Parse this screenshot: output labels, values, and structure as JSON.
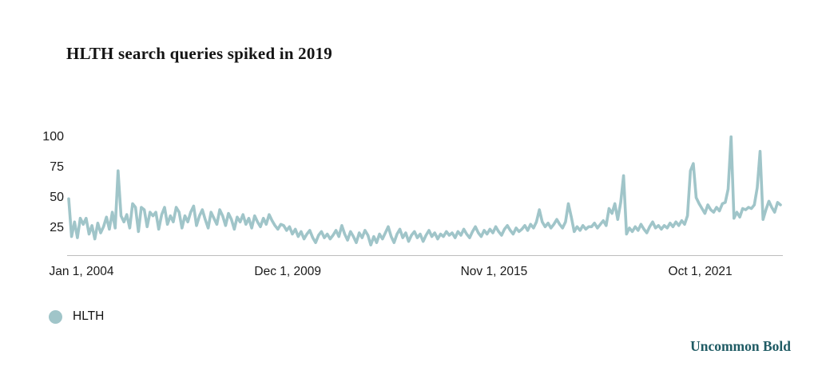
{
  "header": {
    "title": "HLTH search queries spiked in 2019"
  },
  "chart_data": {
    "type": "line",
    "title": "HLTH search queries spiked in 2019",
    "xlabel": "",
    "ylabel": "",
    "grid": false,
    "legend_position": "bottom-left",
    "ylim": [
      0,
      105
    ],
    "y_ticks": [
      100,
      75,
      50,
      25
    ],
    "x_ticks": [
      {
        "label": "Jan 1, 2004",
        "month": 0
      },
      {
        "label": "Dec 1, 2009",
        "month": 71
      },
      {
        "label": "Nov 1, 2015",
        "month": 142
      },
      {
        "label": "Oct 1, 2021",
        "month": 213
      }
    ],
    "total_months": 246,
    "series": [
      {
        "name": "HLTH",
        "color": "#a0c5c9",
        "values": [
          49,
          18,
          30,
          17,
          33,
          28,
          33,
          20,
          27,
          16,
          29,
          21,
          26,
          34,
          24,
          38,
          25,
          72,
          35,
          30,
          36,
          25,
          45,
          42,
          22,
          42,
          40,
          26,
          38,
          35,
          38,
          24,
          36,
          42,
          28,
          35,
          30,
          42,
          38,
          25,
          35,
          30,
          38,
          43,
          27,
          35,
          40,
          32,
          25,
          38,
          33,
          28,
          40,
          35,
          27,
          37,
          32,
          24,
          34,
          30,
          36,
          28,
          33,
          25,
          35,
          30,
          26,
          33,
          28,
          36,
          31,
          27,
          24,
          28,
          27,
          23,
          26,
          20,
          24,
          18,
          22,
          16,
          20,
          23,
          17,
          13,
          19,
          22,
          17,
          20,
          16,
          19,
          23,
          18,
          27,
          20,
          15,
          22,
          18,
          13,
          21,
          17,
          23,
          19,
          11,
          18,
          13,
          20,
          16,
          21,
          26,
          18,
          13,
          20,
          24,
          17,
          21,
          14,
          19,
          22,
          17,
          20,
          14,
          19,
          23,
          18,
          21,
          16,
          20,
          18,
          22,
          19,
          21,
          17,
          22,
          19,
          24,
          20,
          17,
          22,
          26,
          21,
          18,
          23,
          20,
          24,
          21,
          26,
          22,
          19,
          24,
          27,
          23,
          20,
          25,
          22,
          24,
          27,
          23,
          28,
          25,
          30,
          40,
          30,
          26,
          29,
          25,
          28,
          32,
          28,
          25,
          30,
          45,
          34,
          22,
          26,
          23,
          27,
          24,
          26,
          26,
          29,
          25,
          28,
          31,
          27,
          41,
          37,
          45,
          32,
          46,
          68,
          20,
          25,
          22,
          26,
          23,
          28,
          24,
          21,
          26,
          30,
          25,
          27,
          24,
          27,
          25,
          29,
          26,
          30,
          27,
          31,
          28,
          35,
          72,
          78,
          50,
          45,
          41,
          37,
          44,
          40,
          38,
          42,
          39,
          45,
          46,
          57,
          100,
          33,
          38,
          34,
          41,
          40,
          42,
          41,
          44,
          58,
          88,
          32,
          40,
          47,
          42,
          38,
          46,
          44
        ]
      }
    ]
  },
  "legend": {
    "items": [
      {
        "label": "HLTH",
        "color": "#a0c5c9"
      }
    ]
  },
  "footer": {
    "brand": "Uncommon Bold",
    "brand_color": "#1f5b64"
  },
  "colors": {
    "line": "#a0c5c9",
    "axis_line": "#bdbdbd",
    "text": "#1a1a1a"
  }
}
